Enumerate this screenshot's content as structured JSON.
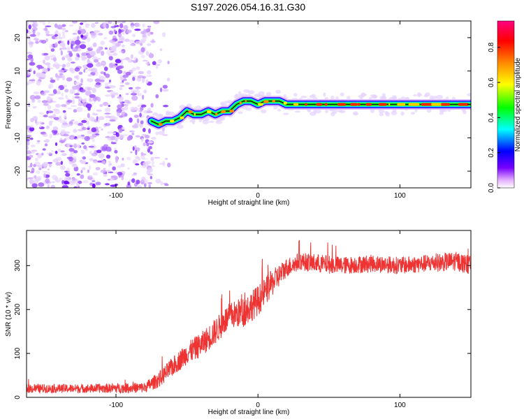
{
  "title": "S197.2026.054.16.31.G30",
  "colors": {
    "snr_line": "#ee3333",
    "scatter": "#7a3ff0",
    "frame": "#000000"
  },
  "chart_data": [
    {
      "type": "heatmap",
      "name": "spectrogram",
      "xlabel": "Height of straight line (km)",
      "ylabel": "Frequency (Hz)",
      "xlim": [
        -163,
        150
      ],
      "ylim": [
        -25,
        25
      ],
      "xticks": [
        -100,
        0,
        100
      ],
      "yticks": [
        -20,
        -10,
        0,
        10,
        20
      ],
      "x_tick_labels": [
        "-100",
        "0",
        "100"
      ],
      "y_tick_labels": [
        "-20",
        "-10",
        "0",
        "10",
        "20"
      ],
      "noise_region_km": [
        -163,
        -75
      ],
      "signal_track": {
        "height_km": [
          -75,
          -70,
          -65,
          -60,
          -55,
          -50,
          -45,
          -40,
          -35,
          -30,
          -25,
          -20,
          -15,
          -10,
          -5,
          0,
          5,
          10,
          15,
          20,
          30,
          40,
          50,
          60,
          70,
          80,
          90,
          100,
          110,
          120,
          130,
          140,
          150
        ],
        "frequency_hz": [
          -5,
          -6,
          -5,
          -5,
          -4,
          -2,
          -3,
          -3,
          -2,
          -3,
          -2,
          -2,
          0,
          1,
          1,
          0,
          1,
          1,
          1,
          0,
          0,
          0,
          0,
          0,
          0,
          0,
          0,
          0,
          0,
          0,
          0,
          0,
          0
        ]
      },
      "colorbar": {
        "label": "Normalized spectral amplitude",
        "range": [
          0,
          0.95
        ],
        "ticks": [
          0.0,
          0.2,
          0.4,
          0.6,
          0.8
        ],
        "tick_labels": [
          "0.0",
          "0.2",
          "0.4",
          "0.6",
          "0.8"
        ],
        "colormap": [
          "#ffffff",
          "#cc66ff",
          "#6600ff",
          "#0000ff",
          "#00ffff",
          "#00ff00",
          "#ffff00",
          "#ff8800",
          "#ff0000",
          "#ff0088"
        ]
      }
    },
    {
      "type": "line",
      "name": "snr",
      "xlabel": "Height of straight line (km)",
      "ylabel": "SNR (10 * v/v)",
      "xlim": [
        -163,
        150
      ],
      "ylim": [
        0,
        380
      ],
      "xticks": [
        -100,
        0,
        100
      ],
      "yticks": [
        0,
        100,
        200,
        300
      ],
      "x_tick_labels": [
        "-100",
        "0",
        "100"
      ],
      "y_tick_labels": [
        "0",
        "100",
        "200",
        "300"
      ],
      "envelope": {
        "x": [
          -163,
          -120,
          -80,
          -70,
          -60,
          -50,
          -40,
          -30,
          -20,
          -10,
          0,
          10,
          20,
          30,
          40,
          60,
          80,
          100,
          120,
          140,
          150
        ],
        "y": [
          20,
          20,
          22,
          40,
          70,
          100,
          120,
          150,
          185,
          195,
          220,
          260,
          295,
          310,
          305,
          300,
          305,
          300,
          305,
          310,
          300
        ]
      },
      "noise_amplitude": [
        10,
        10,
        12,
        18,
        22,
        25,
        28,
        30,
        30,
        35,
        35,
        30,
        22,
        20,
        22,
        20,
        20,
        20,
        20,
        22,
        22
      ]
    }
  ]
}
